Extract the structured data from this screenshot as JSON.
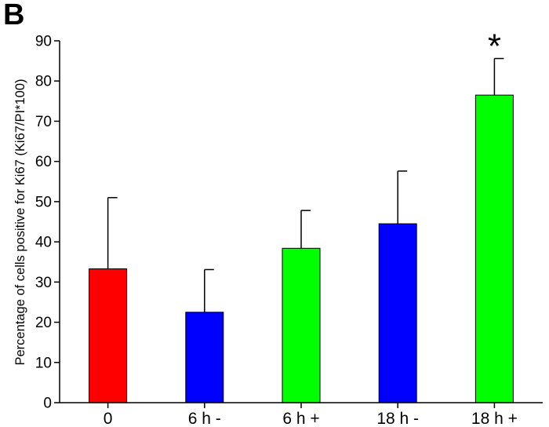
{
  "panel_label": "B",
  "chart_data": {
    "type": "bar",
    "title": "",
    "xlabel": "",
    "ylabel": "Percentage of cells positive for Ki67 (Ki67/PI*100)",
    "categories": [
      "0",
      "6 h -",
      "6 h +",
      "18 h -",
      "18 h +"
    ],
    "values": [
      33.3,
      22.5,
      38.4,
      44.5,
      76.5
    ],
    "error_upper": [
      51.0,
      33.1,
      47.8,
      57.6,
      85.6
    ],
    "colors": [
      "#ff0000",
      "#0000ff",
      "#00ff00",
      "#0000ff",
      "#00ff00"
    ],
    "annotations": [
      {
        "category": "18 h +",
        "text": "*"
      }
    ],
    "ylim": [
      0,
      90
    ],
    "yticks": [
      0,
      10,
      20,
      30,
      40,
      50,
      60,
      70,
      80,
      90
    ],
    "grid": false,
    "legend": "none"
  }
}
